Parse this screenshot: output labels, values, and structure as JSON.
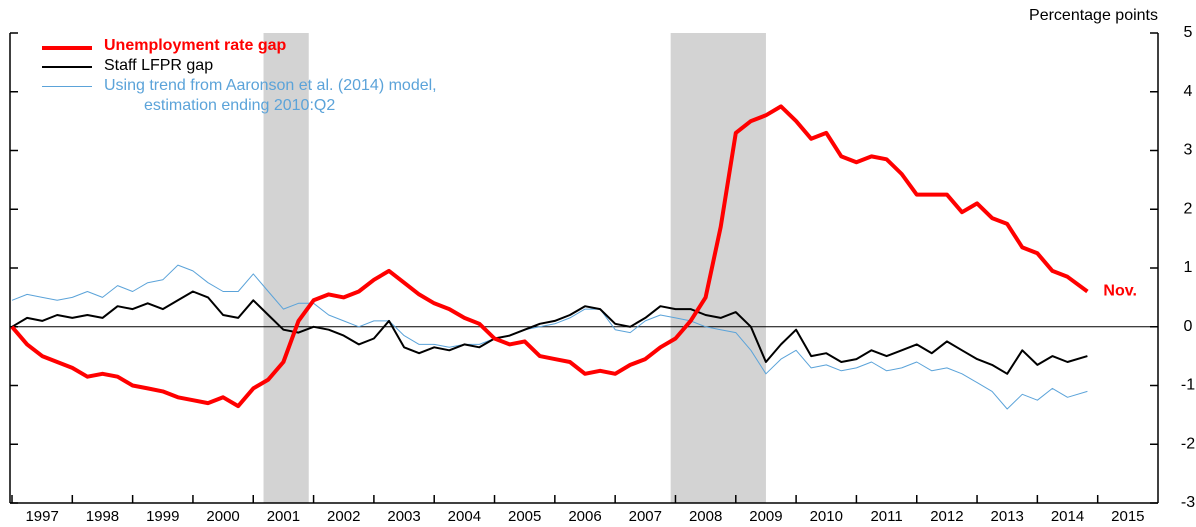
{
  "chart_data": {
    "type": "line",
    "y_axis_label": "Percentage points",
    "annotation": "Nov.",
    "xlim": [
      1997,
      2016
    ],
    "ylim": [
      -3,
      5
    ],
    "xticks": [
      1997,
      1998,
      1999,
      2000,
      2001,
      2002,
      2003,
      2004,
      2005,
      2006,
      2007,
      2008,
      2009,
      2010,
      2011,
      2012,
      2013,
      2014,
      2015
    ],
    "yticks": [
      -3,
      -2,
      -1,
      0,
      1,
      2,
      3,
      4,
      5
    ],
    "legend": "upper-left",
    "shaded_periods": [
      [
        2001.17,
        2001.92
      ],
      [
        2007.92,
        2009.5
      ]
    ],
    "shade_color": "#d3d3d3",
    "x": [
      1997,
      1997.25,
      1997.5,
      1997.75,
      1998,
      1998.25,
      1998.5,
      1998.75,
      1999,
      1999.25,
      1999.5,
      1999.75,
      2000,
      2000.25,
      2000.5,
      2000.75,
      2001,
      2001.25,
      2001.5,
      2001.75,
      2002,
      2002.25,
      2002.5,
      2002.75,
      2003,
      2003.25,
      2003.5,
      2003.75,
      2004,
      2004.25,
      2004.5,
      2004.75,
      2005,
      2005.25,
      2005.5,
      2005.75,
      2006,
      2006.25,
      2006.5,
      2006.75,
      2007,
      2007.25,
      2007.5,
      2007.75,
      2008,
      2008.25,
      2008.5,
      2008.75,
      2009,
      2009.25,
      2009.5,
      2009.75,
      2010,
      2010.25,
      2010.5,
      2010.75,
      2011,
      2011.25,
      2011.5,
      2011.75,
      2012,
      2012.25,
      2012.5,
      2012.75,
      2013,
      2013.25,
      2013.5,
      2013.75,
      2014,
      2014.25,
      2014.5,
      2014.83
    ],
    "series": [
      {
        "name": "Unemployment rate gap",
        "color": "#ff0000",
        "width": 4,
        "values": [
          0,
          -0.3,
          -0.5,
          -0.6,
          -0.7,
          -0.85,
          -0.8,
          -0.85,
          -1.0,
          -1.05,
          -1.1,
          -1.2,
          -1.25,
          -1.3,
          -1.2,
          -1.35,
          -1.05,
          -0.9,
          -0.6,
          0.1,
          0.45,
          0.55,
          0.5,
          0.6,
          0.8,
          0.95,
          0.75,
          0.55,
          0.4,
          0.3,
          0.15,
          0.05,
          -0.2,
          -0.3,
          -0.25,
          -0.5,
          -0.55,
          -0.6,
          -0.8,
          -0.75,
          -0.8,
          -0.65,
          -0.55,
          -0.35,
          -0.2,
          0.1,
          0.5,
          1.7,
          3.3,
          3.5,
          3.6,
          3.75,
          3.5,
          3.2,
          3.3,
          2.9,
          2.8,
          2.9,
          2.85,
          2.6,
          2.25,
          2.25,
          2.25,
          1.95,
          2.1,
          1.85,
          1.75,
          1.35,
          1.25,
          0.95,
          0.85,
          0.6
        ]
      },
      {
        "name": "Staff LFPR gap",
        "color": "#000000",
        "width": 2,
        "values": [
          0,
          0.15,
          0.1,
          0.2,
          0.15,
          0.2,
          0.15,
          0.35,
          0.3,
          0.4,
          0.3,
          0.45,
          0.6,
          0.5,
          0.2,
          0.15,
          0.45,
          0.2,
          -0.05,
          -0.1,
          0,
          -0.05,
          -0.15,
          -0.3,
          -0.2,
          0.1,
          -0.35,
          -0.45,
          -0.35,
          -0.4,
          -0.3,
          -0.35,
          -0.2,
          -0.15,
          -0.05,
          0.05,
          0.1,
          0.2,
          0.35,
          0.3,
          0.05,
          0,
          0.15,
          0.35,
          0.3,
          0.3,
          0.2,
          0.15,
          0.25,
          0,
          -0.6,
          -0.3,
          -0.05,
          -0.5,
          -0.45,
          -0.6,
          -0.55,
          -0.4,
          -0.5,
          -0.4,
          -0.3,
          -0.45,
          -0.25,
          -0.4,
          -0.55,
          -0.65,
          -0.8,
          -0.4,
          -0.65,
          -0.5,
          -0.6,
          -0.5
        ]
      },
      {
        "name": "Using trend from Aaronson et al. (2014) model,\nestimation ending 2010:Q2",
        "color": "#5ba3d9",
        "width": 1,
        "values": [
          0.45,
          0.55,
          0.5,
          0.45,
          0.5,
          0.6,
          0.5,
          0.7,
          0.6,
          0.75,
          0.8,
          1.05,
          0.95,
          0.75,
          0.6,
          0.6,
          0.9,
          0.6,
          0.3,
          0.4,
          0.4,
          0.2,
          0.1,
          0,
          0.1,
          0.1,
          -0.15,
          -0.3,
          -0.3,
          -0.35,
          -0.3,
          -0.3,
          -0.2,
          -0.15,
          -0.05,
          0,
          0.05,
          0.15,
          0.3,
          0.3,
          -0.05,
          -0.1,
          0.1,
          0.2,
          0.15,
          0.1,
          0,
          -0.05,
          -0.1,
          -0.4,
          -0.8,
          -0.55,
          -0.4,
          -0.7,
          -0.65,
          -0.75,
          -0.7,
          -0.6,
          -0.75,
          -0.7,
          -0.6,
          -0.75,
          -0.7,
          -0.8,
          -0.95,
          -1.1,
          -1.4,
          -1.15,
          -1.25,
          -1.05,
          -1.2,
          -1.1
        ]
      }
    ]
  }
}
